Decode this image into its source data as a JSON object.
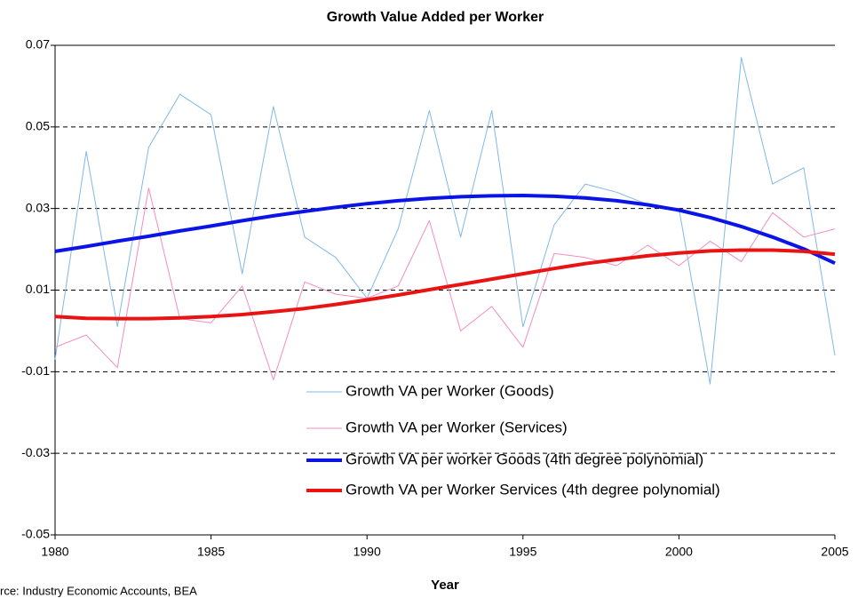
{
  "chart_data": {
    "type": "line",
    "title": "Growth Value Added per Worker",
    "x_label": "Year",
    "source": "rce: Industry Economic Accounts, BEA",
    "x": [
      1980,
      1981,
      1982,
      1983,
      1984,
      1985,
      1986,
      1987,
      1988,
      1989,
      1990,
      1991,
      1992,
      1993,
      1994,
      1995,
      1996,
      1997,
      1998,
      1999,
      2000,
      2001,
      2002,
      2003,
      2004,
      2005
    ],
    "series": [
      {
        "name": "Growth VA per Worker (Goods)",
        "color": "#7fb8e8",
        "width": 1,
        "values": [
          -0.007,
          0.044,
          0.001,
          0.045,
          0.058,
          0.053,
          0.014,
          0.055,
          0.023,
          0.018,
          0.008,
          0.025,
          0.054,
          0.023,
          0.054,
          0.001,
          0.026,
          0.036,
          0.034,
          0.031,
          0.03,
          -0.013,
          0.067,
          0.036,
          0.04,
          -0.006
        ]
      },
      {
        "name": "Growth VA per Worker (Services)",
        "color": "#f28cc0",
        "width": 1,
        "values": [
          -0.004,
          -0.001,
          -0.009,
          0.035,
          0.003,
          0.002,
          0.011,
          -0.012,
          0.012,
          0.009,
          0.008,
          0.011,
          0.027,
          0.0,
          0.006,
          -0.004,
          0.019,
          0.018,
          0.016,
          0.021,
          0.016,
          0.022,
          0.017,
          0.029,
          0.023,
          0.025
        ]
      },
      {
        "name": "Growth VA per worker Goods (4th degree polynomial)",
        "color": "#0a14e6",
        "width": 4,
        "values": [
          0.0195,
          0.0207,
          0.022,
          0.0232,
          0.0245,
          0.0257,
          0.027,
          0.0282,
          0.0293,
          0.0303,
          0.0312,
          0.0319,
          0.0325,
          0.0329,
          0.0331,
          0.0332,
          0.033,
          0.0326,
          0.0319,
          0.0309,
          0.0296,
          0.0278,
          0.0256,
          0.023,
          0.0201,
          0.0166
        ]
      },
      {
        "name": "Growth VA per Worker Services (4th degree polynomial)",
        "color": "#e81414",
        "width": 4,
        "values": [
          0.0035,
          0.0031,
          0.003,
          0.003,
          0.0032,
          0.0035,
          0.004,
          0.0047,
          0.0055,
          0.0065,
          0.0076,
          0.0088,
          0.0101,
          0.0114,
          0.0127,
          0.014,
          0.0153,
          0.0165,
          0.0175,
          0.0184,
          0.0191,
          0.0196,
          0.0198,
          0.0198,
          0.0195,
          0.0188
        ]
      }
    ],
    "xlim": [
      1980,
      2005
    ],
    "xticks": [
      1980,
      1985,
      1990,
      1995,
      2000,
      2005
    ],
    "ylim": [
      -0.05,
      0.07
    ],
    "yticks": [
      0.07,
      0.05,
      0.03,
      0.01,
      -0.01,
      -0.03,
      -0.05
    ],
    "grid": true
  }
}
